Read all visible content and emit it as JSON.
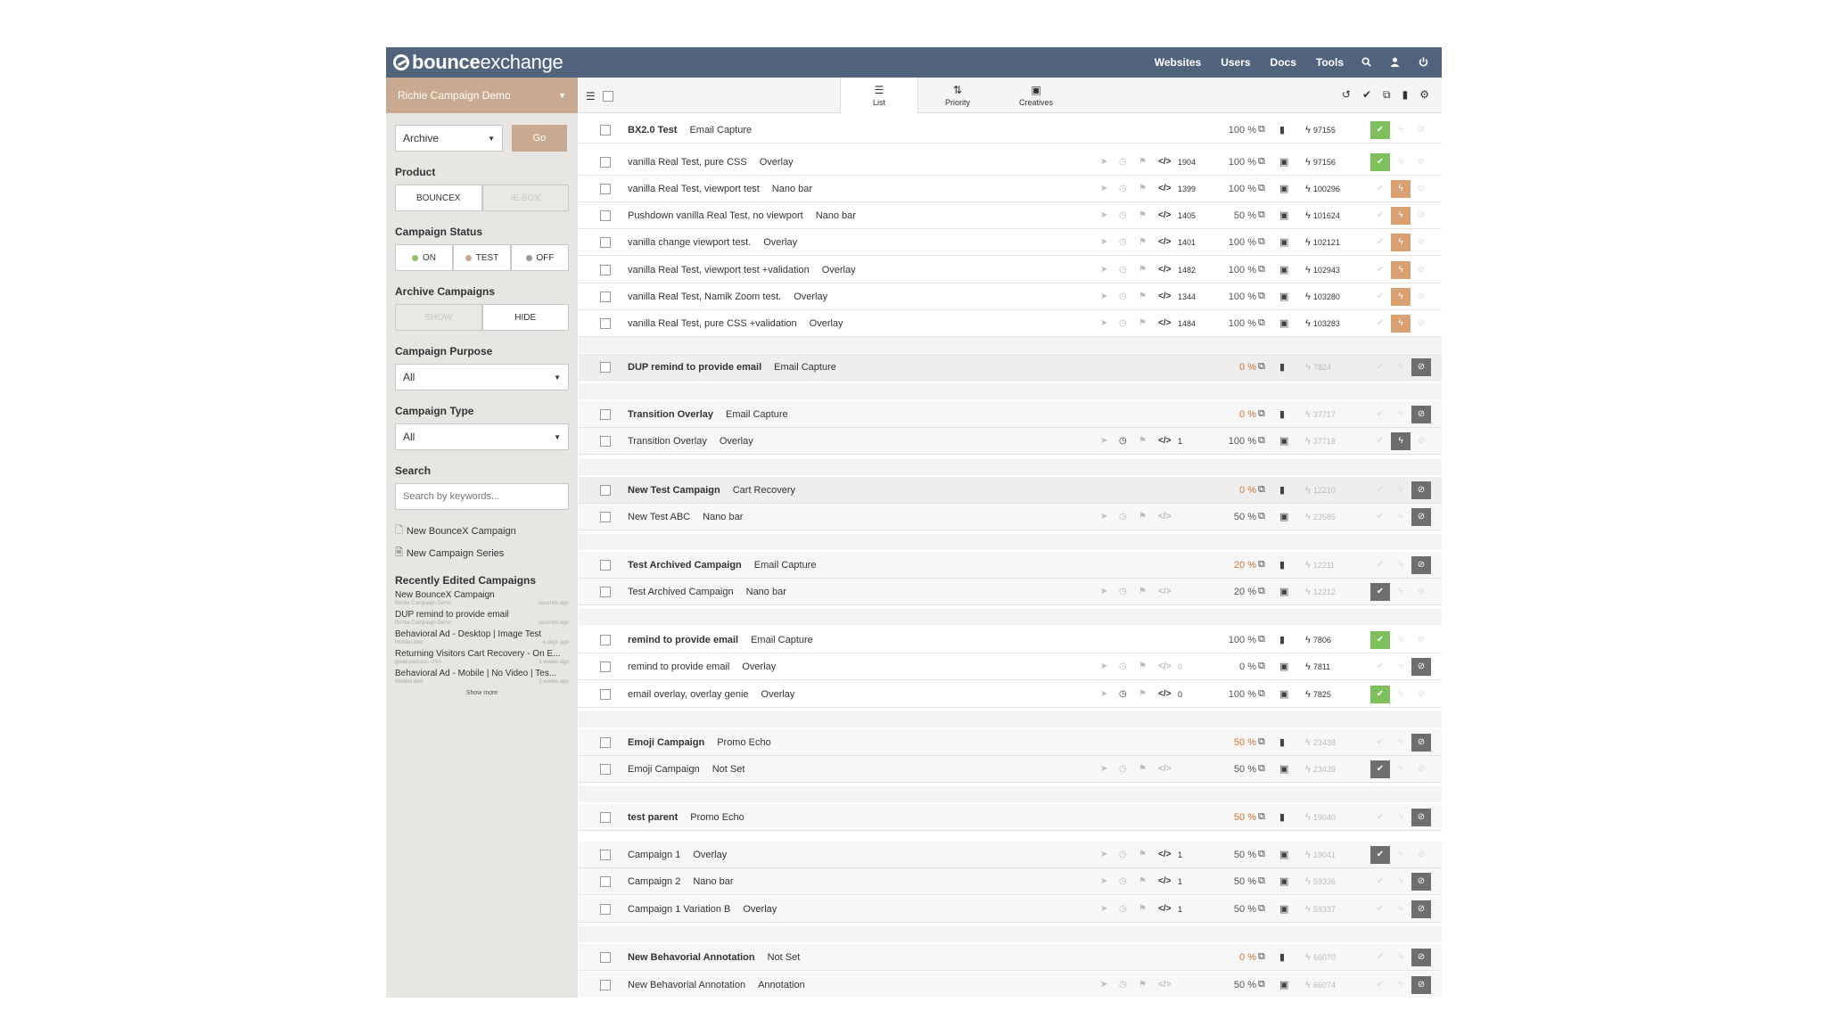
{
  "header": {
    "logo_bold": "bounce",
    "logo_rest": "exchange",
    "nav": [
      "Websites",
      "Users",
      "Docs",
      "Tools"
    ],
    "icons": [
      "search-icon",
      "user-icon",
      "power-icon"
    ]
  },
  "sidebar": {
    "account": "Richie Campaign Demo",
    "bulk_action": "Archive",
    "go_label": "Go",
    "product_label": "Product",
    "product_options": [
      "BOUNCEX",
      "IE.BOX"
    ],
    "status_label": "Campaign Status",
    "status_options": [
      "ON",
      "TEST",
      "OFF"
    ],
    "archive_label": "Archive Campaigns",
    "archive_options": [
      "SHOW",
      "HIDE"
    ],
    "purpose_label": "Campaign Purpose",
    "purpose_value": "All",
    "type_label": "Campaign Type",
    "type_value": "All",
    "search_label": "Search",
    "search_placeholder": "Search by keywords...",
    "new_campaign": "New BounceX Campaign",
    "new_series": "New Campaign Series",
    "recent_label": "Recently Edited Campaigns",
    "recent": [
      {
        "title": "New BounceX Campaign",
        "site": "Richie Campaign Demo",
        "when": "seconds ago"
      },
      {
        "title": "DUP remind to provide email",
        "site": "Richie Campaign Demo",
        "when": "seconds ago"
      },
      {
        "title": "Behavioral Ad - Desktop | Image Test",
        "site": "MobileLikes",
        "when": "4 days ago"
      },
      {
        "title": "Returning Visitors Cart Recovery - On E...",
        "site": "greenpastures USA",
        "when": "1 weeks ago"
      },
      {
        "title": "Behavioral Ad - Mobile | No Video | Tes...",
        "site": "MobileLikes",
        "when": "2 weeks ago"
      }
    ],
    "show_more": "Show more"
  },
  "toolbar": {
    "tabs": [
      {
        "label": "List",
        "icon": "list-icon"
      },
      {
        "label": "Priority",
        "icon": "sort-icon"
      },
      {
        "label": "Creatives",
        "icon": "image-icon"
      }
    ],
    "right_icons": [
      "undo-icon",
      "check-icon",
      "copy-icon",
      "book-icon",
      "gear-icon"
    ]
  },
  "campaigns": [
    {
      "name": "BX2.0 Test",
      "type": "Email Capture",
      "parent": true,
      "pct": "100 %",
      "id": "97155"
    },
    {
      "name": "vanilla Real Test, pure CSS",
      "type": "Overlay",
      "code": "1904",
      "pct": "100 %",
      "id": "97156"
    },
    {
      "name": "vanilla Real Test, viewport test",
      "type": "Nano bar",
      "code": "1399",
      "pct": "100 %",
      "id": "100296"
    },
    {
      "name": "Pushdown vanilla Real Test, no viewport",
      "type": "Nano bar",
      "code": "1405",
      "pct": "50 %",
      "id": "101624"
    },
    {
      "name": "vanilla change viewport test.",
      "type": "Overlay",
      "code": "1401",
      "pct": "100 %",
      "id": "102121"
    },
    {
      "name": "vanilla Real Test, viewport test +validation",
      "type": "Overlay",
      "code": "1482",
      "pct": "100 %",
      "id": "102943"
    },
    {
      "name": "vanilla Real Test, Namik Zoom test.",
      "type": "Overlay",
      "code": "1344",
      "pct": "100 %",
      "id": "103280"
    },
    {
      "name": "vanilla Real Test, pure CSS +validation",
      "type": "Overlay",
      "code": "1484",
      "pct": "100 %",
      "id": "103283"
    },
    {
      "name": "DUP remind to provide email",
      "type": "Email Capture",
      "parent": true,
      "pct": "0 %",
      "id": "7824"
    },
    {
      "name": "Transition Overlay",
      "type": "Email Capture",
      "parent": true,
      "pct": "0 %",
      "id": "37717"
    },
    {
      "name": "Transition Overlay",
      "type": "Overlay",
      "code": "1",
      "pct": "100 %",
      "id": "37718"
    },
    {
      "name": "New Test Campaign",
      "type": "Cart Recovery",
      "parent": true,
      "pct": "0 %",
      "id": "12210"
    },
    {
      "name": "New Test ABC",
      "type": "Nano bar",
      "code": "",
      "pct": "50 %",
      "id": "23585"
    },
    {
      "name": "Test Archived Campaign",
      "type": "Email Capture",
      "parent": true,
      "pct": "20 %",
      "id": "12211"
    },
    {
      "name": "Test Archived Campaign",
      "type": "Nano bar",
      "code": "",
      "pct": "20 %",
      "id": "12212"
    },
    {
      "name": "remind to provide email",
      "type": "Email Capture",
      "parent": true,
      "pct": "100 %",
      "id": "7806"
    },
    {
      "name": "remind to provide email",
      "type": "Overlay",
      "code": "0",
      "pct": "0 %",
      "id": "7811"
    },
    {
      "name": "email overlay, overlay genie",
      "type": "Overlay",
      "code": "0",
      "pct": "100 %",
      "id": "7825"
    },
    {
      "name": "Emoji Campaign",
      "type": "Promo Echo",
      "parent": true,
      "pct": "50 %",
      "id": "23438"
    },
    {
      "name": "Emoji Campaign",
      "type": "Not Set",
      "code": "",
      "pct": "50 %",
      "id": "23439"
    },
    {
      "name": "test parent",
      "type": "Promo Echo",
      "parent": true,
      "pct": "50 %",
      "id": "19040"
    },
    {
      "name": "Campaign 1",
      "type": "Overlay",
      "code": "1",
      "pct": "50 %",
      "id": "19041"
    },
    {
      "name": "Campaign 2",
      "type": "Nano bar",
      "code": "1",
      "pct": "50 %",
      "id": "59336"
    },
    {
      "name": "Campaign 1 Variation B",
      "type": "Overlay",
      "code": "1",
      "pct": "50 %",
      "id": "59337"
    },
    {
      "name": "New Behavorial Annotation",
      "type": "Not Set",
      "parent": true,
      "pct": "0 %",
      "id": "66070"
    },
    {
      "name": "New Behavorial Annotation",
      "type": "Annotation",
      "code": "",
      "pct": "50 %",
      "id": "66074"
    }
  ],
  "colors": {
    "header": "#52647d",
    "accent": "#c9a98f",
    "green": "#7dbf5a",
    "orange_pct": "#d9732e",
    "status_orange": "#d9a071"
  }
}
